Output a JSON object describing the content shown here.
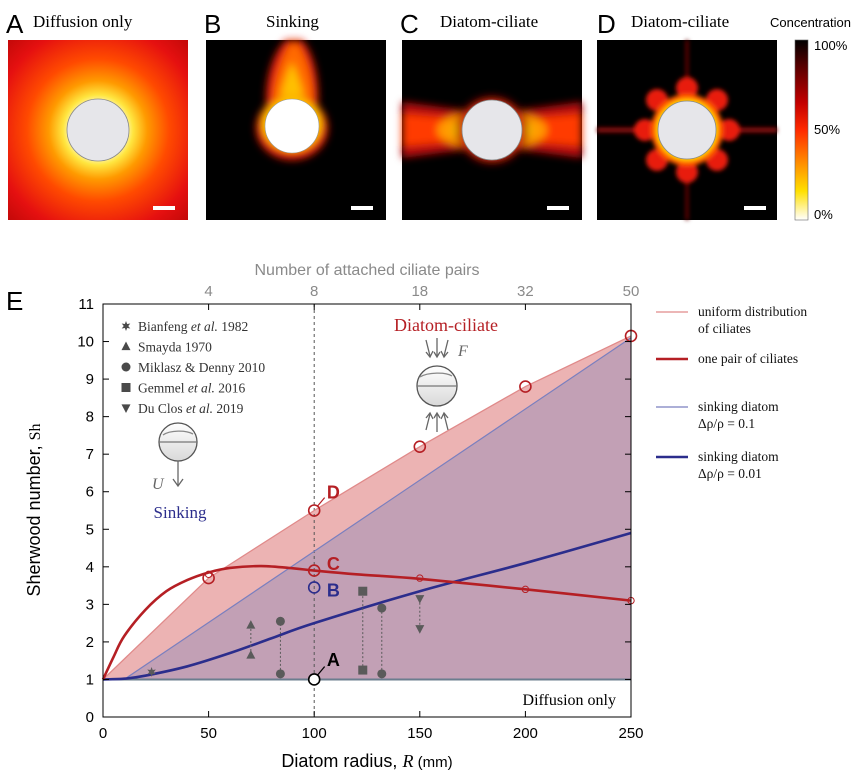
{
  "panels": [
    {
      "letter": "A",
      "title": "Diffusion only",
      "kind": "diffusion"
    },
    {
      "letter": "B",
      "title": "Sinking",
      "kind": "sinking"
    },
    {
      "letter": "C",
      "title": "Diatom-ciliate",
      "kind": "pair"
    },
    {
      "letter": "D",
      "title": "Diatom-ciliate",
      "kind": "many"
    }
  ],
  "colorbar": {
    "title": "Concentration",
    "ticks": [
      "100%",
      "50%",
      "0%"
    ],
    "colors": [
      "#000000",
      "#5a0000",
      "#c40000",
      "#ff2a00",
      "#ff8c00",
      "#ffe000",
      "#ffffff"
    ]
  },
  "panel_E_letter": "E",
  "chart_data": {
    "type": "line",
    "xlabel_text": "Diatom radius, ",
    "xlabel_var": "R",
    "xlabel_unit": " (mm)",
    "ylabel_text": "Sherwood number, ",
    "ylabel_var": "Sh",
    "top_axis_label": "Number of attached ciliate pairs",
    "top_ticks": [
      {
        "x": 50,
        "label": "4"
      },
      {
        "x": 100,
        "label": "8"
      },
      {
        "x": 150,
        "label": "18"
      },
      {
        "x": 200,
        "label": "32"
      },
      {
        "x": 250,
        "label": "50"
      }
    ],
    "xlim": [
      0,
      250
    ],
    "ylim": [
      0,
      11
    ],
    "xticks": [
      0,
      50,
      100,
      150,
      200,
      250
    ],
    "yticks": [
      0,
      1,
      2,
      3,
      4,
      5,
      6,
      7,
      8,
      9,
      10,
      11
    ],
    "colors": {
      "red": "#b51f24",
      "navy": "#2b2d8c",
      "light_navy": "#7a7fbf",
      "red_fill": "#e9a6a6",
      "purple_fill": "#c2a0b5",
      "grey": "#5a5a5a"
    },
    "series": [
      {
        "name": "uniform distribution of ciliates",
        "x": [
          0,
          50,
          100,
          150,
          200,
          250
        ],
        "y": [
          1,
          3.7,
          5.5,
          7.2,
          8.8,
          10.15
        ]
      },
      {
        "name": "one pair of ciliates",
        "x": [
          0,
          5,
          10,
          20,
          30,
          40,
          50,
          60,
          75,
          90,
          100,
          120,
          150,
          200,
          250
        ],
        "y": [
          1,
          1.6,
          2.15,
          2.85,
          3.35,
          3.65,
          3.85,
          3.97,
          4.02,
          3.96,
          3.9,
          3.8,
          3.68,
          3.4,
          3.1
        ]
      },
      {
        "name": "sinking diatom Δρ/ρ = 0.1",
        "x": [
          0,
          10,
          250
        ],
        "y": [
          1,
          1,
          10.1
        ]
      },
      {
        "name": "sinking diatom Δρ/ρ = 0.01",
        "x": [
          0,
          10,
          20,
          40,
          60,
          80,
          100,
          150,
          200,
          250
        ],
        "y": [
          1,
          1.02,
          1.1,
          1.35,
          1.7,
          2.1,
          2.5,
          3.35,
          4.1,
          4.9
        ]
      },
      {
        "name": "Diffusion only",
        "x": [
          0,
          250
        ],
        "y": [
          1,
          1
        ]
      }
    ],
    "markers": {
      "uniform_large": [
        {
          "x": 50,
          "y": 3.7
        },
        {
          "x": 100,
          "y": 5.5
        },
        {
          "x": 150,
          "y": 7.2
        },
        {
          "x": 200,
          "y": 8.8
        },
        {
          "x": 250,
          "y": 10.15
        }
      ],
      "pair_small": [
        {
          "x": 50,
          "y": 3.8
        },
        {
          "x": 150,
          "y": 3.7
        },
        {
          "x": 200,
          "y": 3.4
        },
        {
          "x": 250,
          "y": 3.1
        }
      ],
      "C_marker": {
        "x": 100,
        "y": 3.9
      },
      "B_marker": {
        "x": 100,
        "y": 3.45
      },
      "A_marker": {
        "x": 100,
        "y": 1
      }
    },
    "point_labels": [
      {
        "text": "D",
        "x": 106,
        "y": 6.0,
        "color": "#b51f24"
      },
      {
        "text": "C",
        "x": 106,
        "y": 4.1,
        "color": "#b51f24"
      },
      {
        "text": "B",
        "x": 106,
        "y": 3.4,
        "color": "#2b2d8c"
      },
      {
        "text": "A",
        "x": 106,
        "y": 1.55,
        "color": "#000000"
      }
    ],
    "literature_legend": [
      {
        "author": "Bianfeng",
        "etal": " et al.",
        "year": " 1982",
        "marker": "star"
      },
      {
        "author": "Smayda 1970",
        "etal": "",
        "year": "",
        "marker": "triangle-up"
      },
      {
        "author": "Miklasz & Denny 2010",
        "etal": "",
        "year": "",
        "marker": "circle"
      },
      {
        "author": "Gemmel",
        "etal": " et al.",
        "year": " 2016",
        "marker": "square"
      },
      {
        "author": "Du Clos",
        "etal": " et al.",
        "year": " 2019",
        "marker": "triangle-down"
      }
    ],
    "literature_points": [
      {
        "marker": "star",
        "x": 23,
        "y": 1.2
      },
      {
        "marker": "triangle-up",
        "x": 70,
        "y": 1.65
      },
      {
        "marker": "triangle-up",
        "x": 70,
        "y": 2.45
      },
      {
        "marker": "circle",
        "x": 84,
        "y": 1.15
      },
      {
        "marker": "circle",
        "x": 84,
        "y": 2.55
      },
      {
        "marker": "square",
        "x": 123,
        "y": 1.25
      },
      {
        "marker": "square",
        "x": 123,
        "y": 3.35
      },
      {
        "marker": "circle",
        "x": 132,
        "y": 1.15
      },
      {
        "marker": "circle",
        "x": 132,
        "y": 2.9
      },
      {
        "marker": "triangle-down",
        "x": 150,
        "y": 3.15
      },
      {
        "marker": "triangle-down",
        "x": 150,
        "y": 2.35
      }
    ],
    "literature_links": [
      {
        "x": 70,
        "y1": 1.65,
        "y2": 2.45
      },
      {
        "x": 84,
        "y1": 1.15,
        "y2": 2.55
      },
      {
        "x": 123,
        "y1": 1.25,
        "y2": 3.35
      },
      {
        "x": 132,
        "y1": 1.15,
        "y2": 2.9
      },
      {
        "x": 150,
        "y1": 2.35,
        "y2": 3.15
      }
    ],
    "annotations": {
      "diatom_ciliate": "Diatom-ciliate",
      "force_symbol": "F",
      "velocity_symbol": "U",
      "sinking": "Sinking",
      "diffusion_only": "Diffusion only"
    },
    "legend": [
      {
        "label_lines": [
          "uniform distribution",
          "of ciliates"
        ],
        "color": "#e08a8a",
        "width": 1.2
      },
      {
        "label_lines": [
          "one pair of ciliates"
        ],
        "color": "#b51f24",
        "width": 2.5
      },
      {
        "label_lines": [
          "sinking diatom",
          "Δρ/ρ = 0.1"
        ],
        "color": "#7a7fbf",
        "width": 1.2
      },
      {
        "label_lines": [
          "sinking diatom",
          "Δρ/ρ = 0.01"
        ],
        "color": "#2b2d8c",
        "width": 2.5
      }
    ]
  }
}
